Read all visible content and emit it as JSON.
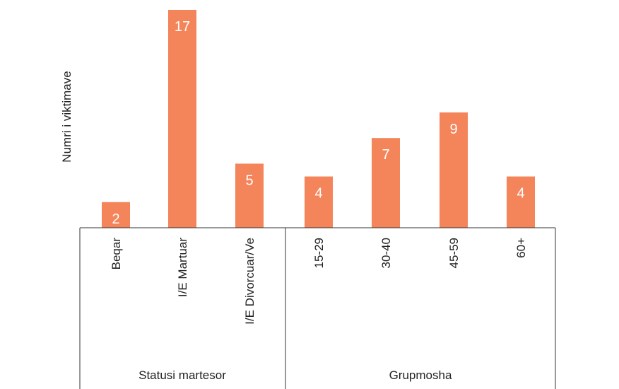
{
  "chart_data": {
    "type": "bar",
    "title": "",
    "xlabel": "",
    "ylabel": "Numri i viktimave",
    "ylim": [
      0,
      17
    ],
    "grid": false,
    "bar_color": "#F4845A",
    "groups": [
      {
        "name": "Statusi martesor",
        "categories": [
          "Beqar",
          "I/E Martuar",
          "I/E Divorcuar/Ve"
        ],
        "values": [
          2,
          17,
          5
        ]
      },
      {
        "name": "Grupmosha",
        "categories": [
          "15-29",
          "30-40",
          "45-59",
          "60+"
        ],
        "values": [
          4,
          7,
          9,
          4
        ]
      }
    ]
  }
}
